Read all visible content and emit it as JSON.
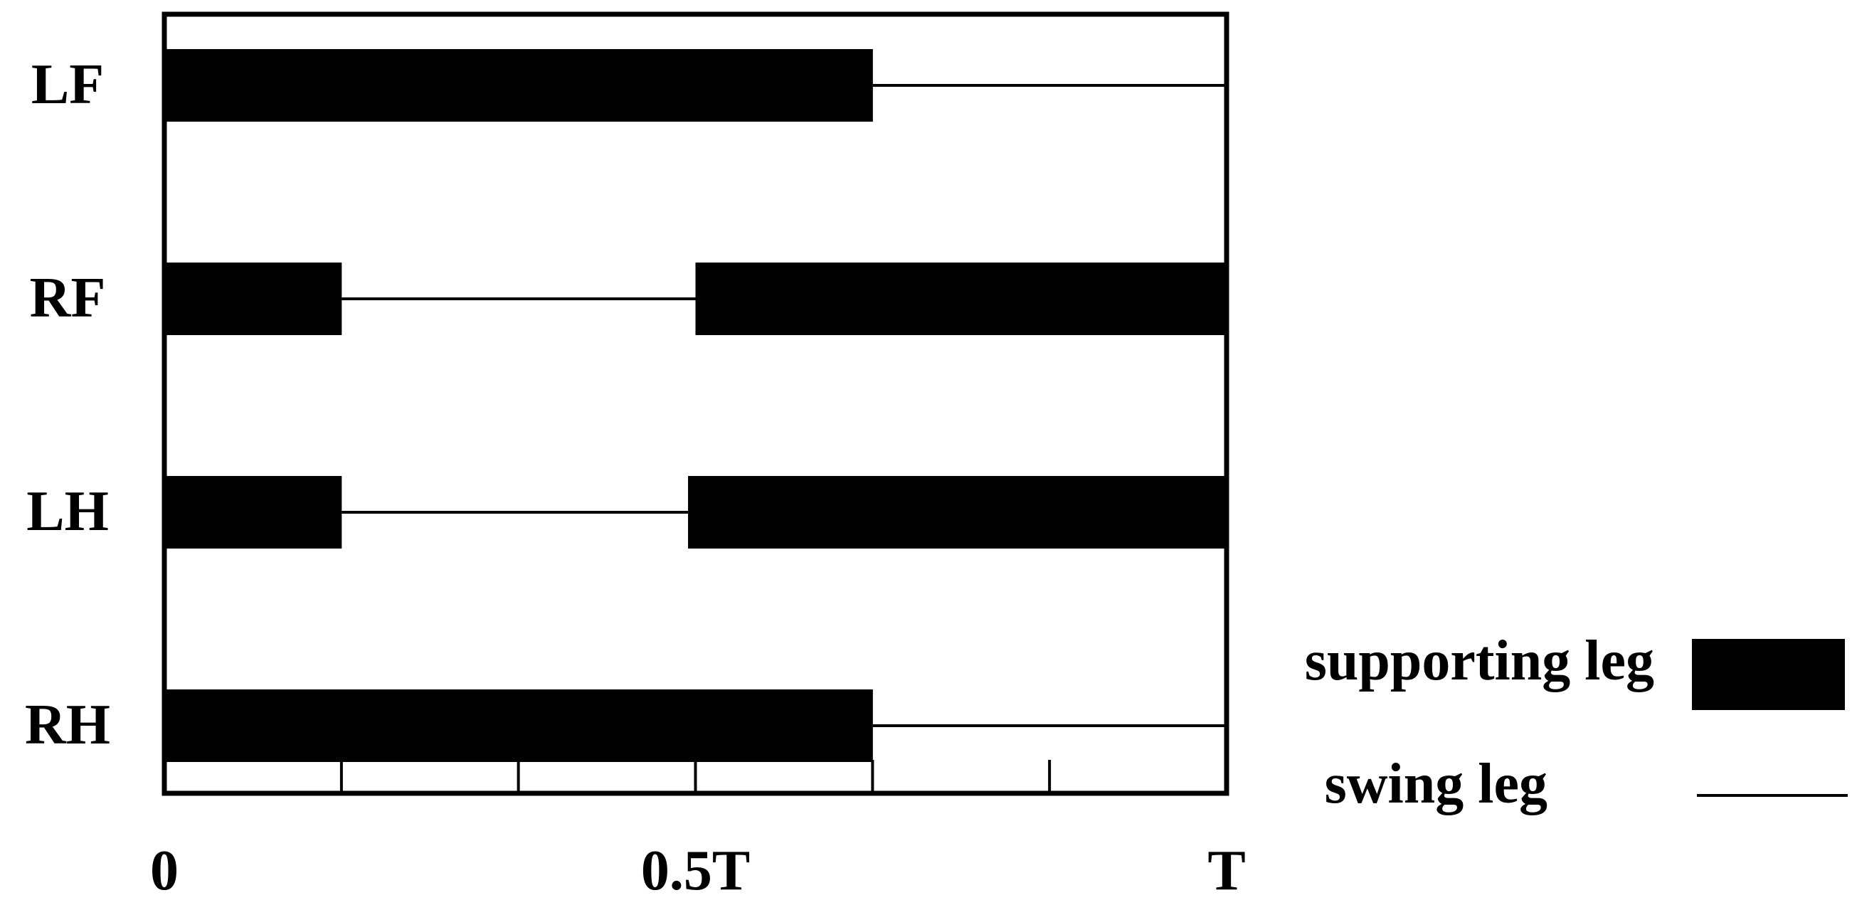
{
  "chart_data": {
    "type": "gait-diagram",
    "xlim": [
      0,
      1
    ],
    "x_tick_labels": [
      "0",
      "0.5T",
      "T"
    ],
    "x_tick_label_values": [
      0,
      0.5,
      1.0
    ],
    "minor_ticks": [
      0.1667,
      0.3333,
      0.5,
      0.6667,
      0.8333
    ],
    "legs": [
      {
        "label": "LF",
        "segments": [
          {
            "state": "support",
            "start": 0.0,
            "end": 0.667
          },
          {
            "state": "swing",
            "start": 0.667,
            "end": 1.0
          }
        ]
      },
      {
        "label": "RF",
        "segments": [
          {
            "state": "support",
            "start": 0.0,
            "end": 0.167
          },
          {
            "state": "swing",
            "start": 0.167,
            "end": 0.5
          },
          {
            "state": "support",
            "start": 0.5,
            "end": 1.0
          }
        ]
      },
      {
        "label": "LH",
        "segments": [
          {
            "state": "support",
            "start": 0.0,
            "end": 0.167
          },
          {
            "state": "swing",
            "start": 0.167,
            "end": 0.493
          },
          {
            "state": "support",
            "start": 0.493,
            "end": 1.0
          }
        ]
      },
      {
        "label": "RH",
        "segments": [
          {
            "state": "support",
            "start": 0.0,
            "end": 0.667
          },
          {
            "state": "swing",
            "start": 0.667,
            "end": 1.0
          }
        ]
      }
    ],
    "legend": {
      "placement": "bottom-right",
      "items": [
        {
          "label": "supporting leg",
          "style": "bar"
        },
        {
          "label": "swing leg",
          "style": "line"
        }
      ]
    },
    "colors": {
      "mark": "#000000",
      "background": "#ffffff"
    }
  }
}
